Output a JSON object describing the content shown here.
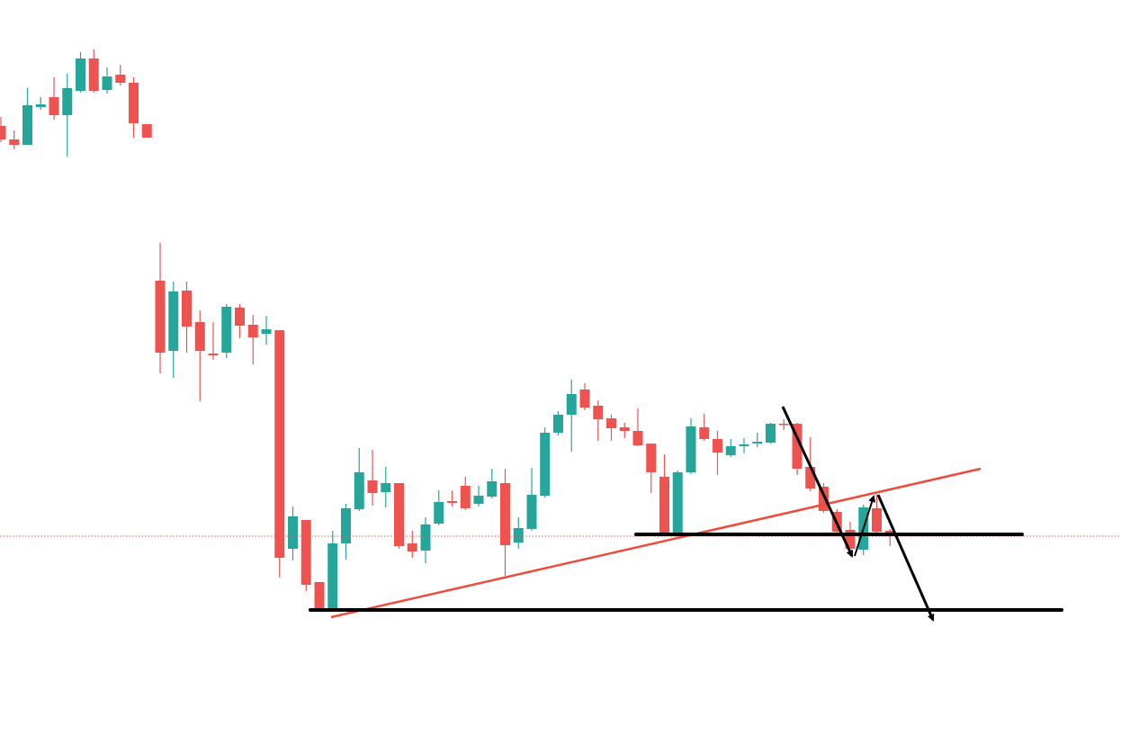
{
  "chart_data": {
    "type": "candlestick",
    "up_color": "#26a69a",
    "down_color": "#ef5350",
    "ylim": [
      0,
      837
    ],
    "open": [
      697,
      682,
      676,
      718,
      729,
      709,
      736,
      772,
      737,
      754,
      745,
      699,
      525,
      447,
      514,
      479,
      444,
      445,
      495,
      476,
      466,
      470,
      227,
      259,
      190,
      159,
      233,
      271,
      303,
      290,
      300,
      233,
      225,
      255,
      280,
      297,
      277,
      285,
      300,
      234,
      249,
      286,
      356,
      376,
      404,
      386,
      372,
      362,
      358,
      344,
      307,
      244,
      312,
      362,
      349,
      331,
      341,
      344,
      345,
      366,
      366,
      318,
      296,
      268,
      248,
      226,
      272,
      247
    ],
    "high": [
      707,
      692,
      739,
      729,
      751,
      755,
      779,
      782,
      762,
      765,
      751,
      699,
      567,
      524,
      524,
      492,
      479,
      499,
      499,
      487,
      486,
      470,
      274,
      259,
      190,
      247,
      277,
      339,
      337,
      318,
      300,
      247,
      262,
      292,
      292,
      307,
      297,
      316,
      316,
      262,
      317,
      362,
      380,
      415,
      411,
      392,
      376,
      367,
      383,
      344,
      332,
      314,
      372,
      377,
      358,
      349,
      350,
      356,
      367,
      371,
      367,
      351,
      300,
      271,
      257,
      276,
      287,
      249
    ],
    "low": [
      679,
      671,
      676,
      715,
      704,
      663,
      734,
      734,
      733,
      742,
      684,
      684,
      422,
      417,
      445,
      391,
      437,
      439,
      461,
      432,
      454,
      195,
      214,
      180,
      157,
      159,
      215,
      269,
      275,
      273,
      227,
      217,
      211,
      253,
      274,
      270,
      274,
      283,
      197,
      227,
      247,
      284,
      353,
      335,
      381,
      347,
      347,
      350,
      341,
      289,
      243,
      243,
      310,
      347,
      309,
      329,
      333,
      340,
      344,
      359,
      309,
      291,
      267,
      244,
      219,
      220,
      245,
      230
    ],
    "close": [
      682,
      676,
      720,
      721,
      709,
      739,
      772,
      736,
      752,
      745,
      700,
      684,
      445,
      513,
      474,
      447,
      442,
      496,
      475,
      462,
      471,
      217,
      263,
      187,
      159,
      233,
      272,
      312,
      289,
      300,
      230,
      224,
      254,
      279,
      278,
      272,
      286,
      302,
      231,
      250,
      287,
      356,
      376,
      399,
      384,
      371,
      361,
      358,
      342,
      312,
      244,
      312,
      363,
      349,
      334,
      341,
      343,
      346,
      366,
      365,
      316,
      294,
      269,
      246,
      227,
      273,
      246,
      245
    ]
  }
}
